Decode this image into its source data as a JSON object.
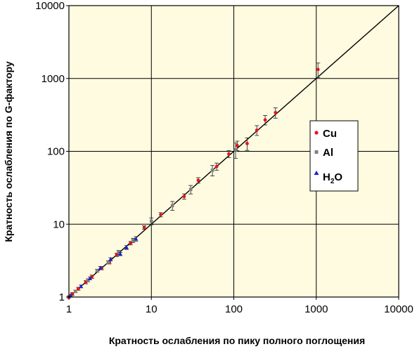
{
  "chart_data": {
    "type": "scatter",
    "x_scale": "log",
    "y_scale": "log",
    "xlim": [
      1,
      10000
    ],
    "ylim": [
      1,
      10000
    ],
    "x_ticks": [
      "1",
      "10",
      "100",
      "1000",
      "10000"
    ],
    "y_ticks": [
      "1",
      "10",
      "100",
      "1000",
      "10000"
    ],
    "xlabel": "Кратность ослабления по пику полного поглощения",
    "ylabel": "Кратность ослабления по G-фактору",
    "grid": true,
    "background": "#FFFBE0",
    "legend_position": "right",
    "reference_line": {
      "x": [
        1,
        10000
      ],
      "y": [
        1,
        10000
      ]
    },
    "series": [
      {
        "name": "Cu",
        "marker": "circle",
        "color": "#E8141E",
        "x": [
          1,
          1.1,
          1.3,
          1.6,
          1.9,
          2.5,
          3.1,
          3.8,
          5.6,
          8.2,
          13,
          25,
          37,
          62,
          87,
          110,
          145,
          190,
          240,
          320,
          1050
        ],
        "y": [
          1,
          1.1,
          1.3,
          1.6,
          1.9,
          2.5,
          3.0,
          3.8,
          5.5,
          9.0,
          13.5,
          24,
          40,
          62,
          92,
          120,
          128,
          195,
          270,
          340,
          1330
        ],
        "err": [
          0.04,
          0.05,
          0.06,
          0.08,
          0.1,
          0.13,
          0.15,
          0.2,
          0.3,
          0.5,
          0.9,
          2,
          3.5,
          7,
          10,
          18,
          25,
          30,
          40,
          55,
          300
        ]
      },
      {
        "name": "Al",
        "marker": "square",
        "color": "#808080",
        "x": [
          1.2,
          1.7,
          2.2,
          3.0,
          4.0,
          6.0,
          10,
          18,
          30,
          55,
          105
        ],
        "y": [
          1.2,
          1.7,
          2.3,
          3.0,
          4.1,
          6.0,
          11,
          18,
          30,
          55,
          105
        ],
        "err": [
          0.05,
          0.08,
          0.11,
          0.15,
          0.25,
          0.4,
          1.2,
          2.5,
          4,
          9,
          25
        ]
      },
      {
        "name": "H2O",
        "marker": "triangle",
        "color": "#1E1ED2",
        "x": [
          1.05,
          1.4,
          1.8,
          2.4,
          3.2,
          4.2,
          5.0,
          6.5
        ],
        "y": [
          1.05,
          1.4,
          1.8,
          2.5,
          3.3,
          3.9,
          4.8,
          6.3
        ],
        "err": [
          0.04,
          0.06,
          0.08,
          0.12,
          0.16,
          0.2,
          0.3,
          0.45
        ]
      }
    ]
  },
  "legend": {
    "cu_label": "Cu",
    "al_label": "Al",
    "h2o_label_main": "H",
    "h2o_label_sub": "2",
    "h2o_label_end": "O"
  }
}
